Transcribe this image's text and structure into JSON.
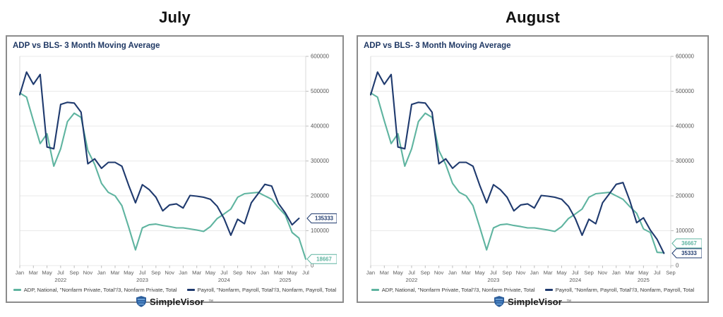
{
  "brand": {
    "name": "SimpleVisor",
    "tm": "™"
  },
  "colors": {
    "adp_line": "#5fb4a0",
    "payroll_line": "#1f3a6e",
    "grid": "#e9e9e9",
    "axis_text": "#595959",
    "chart_title": "#1f3864",
    "card_border": "#8c8c8c"
  },
  "charts": [
    {
      "heading": "July",
      "title": "ADP vs BLS- 3 Month Moving Average",
      "legend": [
        {
          "label": "ADP, National, \"Nonfarm Private, Total\"/3, Nonfarm Private, Total",
          "color": "#5fb4a0"
        },
        {
          "label": "Payroll, \"Nonfarm, Payroll, Total\"/3, Nonfarm, Payroll, Total",
          "color": "#1f3a6e"
        }
      ],
      "chart_data": {
        "type": "line",
        "title": "ADP vs BLS- 3 Month Moving Average",
        "x_start": "Jan 2022",
        "x_end": "Jul 2025",
        "months_total": 43,
        "grid": true,
        "legend_position": "bottom",
        "y_axis": {
          "min": 0,
          "max": 600000,
          "step": 100000,
          "tick_labels": [
            "600000",
            "500000",
            "400000",
            "300000",
            "200000",
            "100000",
            "0"
          ]
        },
        "x_ticks": [
          {
            "i": 0,
            "label": "Jan"
          },
          {
            "i": 2,
            "label": "Mar"
          },
          {
            "i": 4,
            "label": "May"
          },
          {
            "i": 6,
            "label": "Jul"
          },
          {
            "i": 8,
            "label": "Sep"
          },
          {
            "i": 10,
            "label": "Nov"
          },
          {
            "i": 12,
            "label": "Jan"
          },
          {
            "i": 14,
            "label": "Mar"
          },
          {
            "i": 16,
            "label": "May"
          },
          {
            "i": 18,
            "label": "Jul"
          },
          {
            "i": 20,
            "label": "Sep"
          },
          {
            "i": 22,
            "label": "Nov"
          },
          {
            "i": 24,
            "label": "Jan"
          },
          {
            "i": 26,
            "label": "Mar"
          },
          {
            "i": 28,
            "label": "May"
          },
          {
            "i": 30,
            "label": "Jul"
          },
          {
            "i": 32,
            "label": "Sep"
          },
          {
            "i": 34,
            "label": "Nov"
          },
          {
            "i": 36,
            "label": "Jan"
          },
          {
            "i": 38,
            "label": "Mar"
          },
          {
            "i": 40,
            "label": "May"
          },
          {
            "i": 42,
            "label": "Jul"
          }
        ],
        "year_labels": [
          {
            "i": 6,
            "label": "2022"
          },
          {
            "i": 18,
            "label": "2023"
          },
          {
            "i": 30,
            "label": "2024"
          },
          {
            "i": 39,
            "label": "2025"
          }
        ],
        "series": [
          {
            "name": "ADP",
            "color": "#5fb4a0",
            "start_index": 0,
            "values": [
              495000,
              483000,
              415000,
              350000,
              378000,
              285000,
              335000,
              413000,
              437000,
              425000,
              330000,
              290000,
              236000,
              210000,
              200000,
              172000,
              110000,
              45000,
              108000,
              117000,
              119000,
              115000,
              112000,
              108000,
              108000,
              105000,
              102000,
              98000,
              112000,
              135000,
              148000,
              162000,
              196000,
              206000,
              208000,
              210000,
              200000,
              190000,
              166000,
              145000,
              95000,
              79000,
              18667
            ]
          },
          {
            "name": "Payroll",
            "color": "#1f3a6e",
            "start_index": 0,
            "values": [
              490000,
              555000,
              520000,
              548000,
              340000,
              335000,
              462000,
              468000,
              466000,
              440000,
              292000,
              306000,
              279000,
              296000,
              296000,
              285000,
              230000,
              180000,
              232000,
              218000,
              196000,
              157000,
              174000,
              177000,
              165000,
              201000,
              199000,
              196000,
              190000,
              170000,
              135000,
              87000,
              133000,
              120000,
              180000,
              206000,
              233000,
              228000,
              178000,
              151000,
              117000,
              135333
            ]
          }
        ],
        "end_labels": [
          {
            "text": "135333",
            "series": 1,
            "color": "#1f3a6e"
          },
          {
            "text": "18667",
            "series": 0,
            "color": "#5fb4a0"
          }
        ]
      }
    },
    {
      "heading": "August",
      "title": "ADP vs BLS- 3 Month Moving Average",
      "legend": [
        {
          "label": "ADP, National, \"Nonfarm Private, Total\"/3, Nonfarm Private, Total",
          "color": "#5fb4a0"
        },
        {
          "label": "Payroll, \"Nonfarm, Payroll, Total\"/3, Nonfarm, Payroll, Total",
          "color": "#1f3a6e"
        }
      ],
      "chart_data": {
        "type": "line",
        "title": "ADP vs BLS- 3 Month Moving Average",
        "x_start": "Jan 2022",
        "x_end": "Sep 2025",
        "months_total": 45,
        "grid": true,
        "legend_position": "bottom",
        "y_axis": {
          "min": 0,
          "max": 600000,
          "step": 100000,
          "tick_labels": [
            "600000",
            "500000",
            "400000",
            "300000",
            "200000",
            "100000",
            "0"
          ]
        },
        "x_ticks": [
          {
            "i": 0,
            "label": "Jan"
          },
          {
            "i": 2,
            "label": "Mar"
          },
          {
            "i": 4,
            "label": "May"
          },
          {
            "i": 6,
            "label": "Jul"
          },
          {
            "i": 8,
            "label": "Sep"
          },
          {
            "i": 10,
            "label": "Nov"
          },
          {
            "i": 12,
            "label": "Jan"
          },
          {
            "i": 14,
            "label": "Mar"
          },
          {
            "i": 16,
            "label": "May"
          },
          {
            "i": 18,
            "label": "Jul"
          },
          {
            "i": 20,
            "label": "Sep"
          },
          {
            "i": 22,
            "label": "Nov"
          },
          {
            "i": 24,
            "label": "Jan"
          },
          {
            "i": 26,
            "label": "Mar"
          },
          {
            "i": 28,
            "label": "May"
          },
          {
            "i": 30,
            "label": "Jul"
          },
          {
            "i": 32,
            "label": "Sep"
          },
          {
            "i": 34,
            "label": "Nov"
          },
          {
            "i": 36,
            "label": "Jan"
          },
          {
            "i": 38,
            "label": "Mar"
          },
          {
            "i": 40,
            "label": "May"
          },
          {
            "i": 42,
            "label": "Jul"
          },
          {
            "i": 44,
            "label": "Sep"
          }
        ],
        "year_labels": [
          {
            "i": 6,
            "label": "2022"
          },
          {
            "i": 18,
            "label": "2023"
          },
          {
            "i": 30,
            "label": "2024"
          },
          {
            "i": 40,
            "label": "2025"
          }
        ],
        "series": [
          {
            "name": "ADP",
            "color": "#5fb4a0",
            "start_index": 0,
            "values": [
              495000,
              483000,
              415000,
              350000,
              378000,
              285000,
              335000,
              413000,
              437000,
              425000,
              330000,
              290000,
              236000,
              210000,
              200000,
              172000,
              110000,
              45000,
              108000,
              117000,
              119000,
              115000,
              112000,
              108000,
              108000,
              105000,
              102000,
              98000,
              112000,
              135000,
              148000,
              162000,
              196000,
              206000,
              208000,
              210000,
              200000,
              190000,
              169000,
              150000,
              105000,
              95000,
              38000,
              36667
            ]
          },
          {
            "name": "Payroll",
            "color": "#1f3a6e",
            "start_index": 0,
            "values": [
              490000,
              555000,
              520000,
              548000,
              340000,
              335000,
              462000,
              468000,
              466000,
              440000,
              292000,
              306000,
              279000,
              296000,
              296000,
              285000,
              230000,
              180000,
              232000,
              218000,
              196000,
              157000,
              174000,
              177000,
              165000,
              201000,
              199000,
              196000,
              190000,
              170000,
              135000,
              87000,
              133000,
              120000,
              180000,
              206000,
              233000,
              238000,
              186000,
              123000,
              137000,
              102000,
              75000,
              35333
            ]
          }
        ],
        "end_labels": [
          {
            "text": "36667",
            "series": 0,
            "color": "#5fb4a0"
          },
          {
            "text": "35333",
            "series": 1,
            "color": "#1f3a6e"
          }
        ]
      }
    }
  ]
}
